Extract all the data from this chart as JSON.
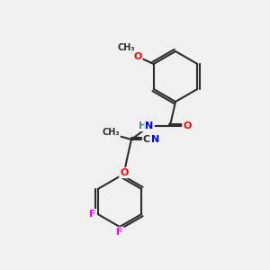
{
  "background_color": "#f0f0f0",
  "bond_color": "#2d2d2d",
  "atom_colors": {
    "O": "#ff0000",
    "N": "#0000ff",
    "F": "#ff00ff",
    "H": "#4a8a8a",
    "C": "#2d2d2d"
  },
  "figsize": [
    3.0,
    3.0
  ],
  "dpi": 100
}
